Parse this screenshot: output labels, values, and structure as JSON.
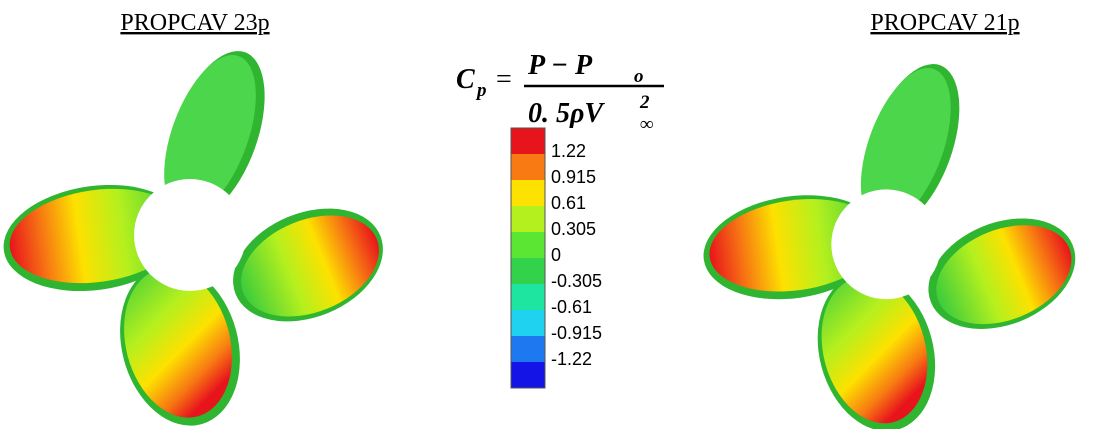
{
  "panels": [
    {
      "title": "PROPCAV 23p"
    },
    {
      "title": "PROPCAV 21p"
    }
  ],
  "formula": {
    "lhs": "C",
    "lhs_sub": "p",
    "equals": "=",
    "numerator": "P − P",
    "numerator_sub": "o",
    "denominator": "0. 5ρV",
    "denominator_sup": "2",
    "denominator_sub": "∞"
  },
  "legend": {
    "colors": [
      "#e8141c",
      "#f77a12",
      "#fde100",
      "#b4f01e",
      "#5ae632",
      "#32d24a",
      "#1ee6a0",
      "#1ed2f0",
      "#1e78f0",
      "#1414e6"
    ],
    "labels": [
      "1.22",
      "0.915",
      "0.61",
      "0.305",
      "0",
      "-0.305",
      "-0.61",
      "-0.915",
      "-1.22"
    ]
  }
}
